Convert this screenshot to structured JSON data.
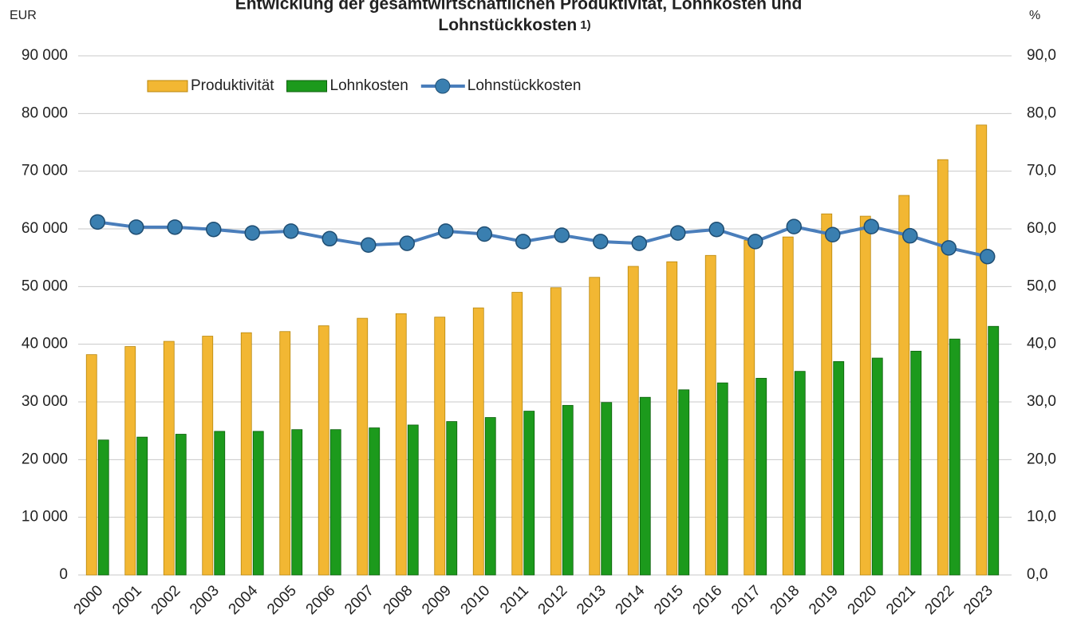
{
  "chart_data": {
    "type": "bar_line",
    "title": [
      "Entwicklung der gesamtwirtschaftlichen Produktivität, Lohnkosten und",
      "Lohnstückkosten"
    ],
    "title_note": "1)",
    "y_label": "EUR",
    "y2_label": "%",
    "categories": [
      "2000",
      "2001",
      "2002",
      "2003",
      "2004",
      "2005",
      "2006",
      "2007",
      "2008",
      "2009",
      "2010",
      "2011",
      "2012",
      "2013",
      "2014",
      "2015",
      "2016",
      "2017",
      "2018",
      "2019",
      "2020",
      "2021",
      "2022",
      "2023"
    ],
    "series": [
      {
        "name": "Produktivität",
        "color": "#f2b733",
        "type": "bar",
        "values": [
          38200,
          39600,
          40500,
          41400,
          42000,
          42200,
          43200,
          44500,
          45300,
          44700,
          46300,
          49000,
          49800,
          51600,
          53500,
          54300,
          55400,
          58000,
          58600,
          62600,
          62200,
          65800,
          72000,
          78000
        ]
      },
      {
        "name": "Lohnkosten",
        "color": "#1c9a1c",
        "type": "bar",
        "values": [
          23400,
          23900,
          24400,
          24900,
          24900,
          25200,
          25200,
          25500,
          26000,
          26600,
          27300,
          28400,
          29400,
          29900,
          30800,
          32100,
          33300,
          34100,
          35300,
          37000,
          37600,
          38800,
          40900,
          43100
        ]
      },
      {
        "name": "Lohnstückkosten",
        "color": "#4a7ebb",
        "type": "line",
        "axis": "y2",
        "values": [
          61.2,
          60.3,
          60.3,
          59.9,
          59.3,
          59.6,
          58.3,
          57.2,
          57.5,
          59.6,
          59.1,
          57.8,
          58.9,
          57.8,
          57.5,
          59.3,
          59.9,
          57.8,
          60.4,
          59.0,
          60.4,
          58.8,
          56.7,
          55.2
        ]
      }
    ],
    "ylim": [
      0,
      90000
    ],
    "yticks": [
      0,
      {
        "value": 10000,
        "label": "10 000"
      },
      {
        "value": 20000,
        "label": "20 000"
      },
      {
        "value": 30000,
        "label": "30 000"
      },
      {
        "value": 40000,
        "label": "40 000"
      },
      {
        "value": 50000,
        "label": "50 000"
      },
      {
        "value": 60000,
        "label": "60 000"
      },
      {
        "value": 70000,
        "label": "70 000"
      },
      {
        "value": 80000,
        "label": "80 000"
      },
      {
        "value": 90000,
        "label": "90 000"
      }
    ],
    "y2lim": [
      0,
      90
    ],
    "y2ticks": [
      {
        "value": 0,
        "label": "0,0"
      },
      {
        "value": 10,
        "label": "10,0"
      },
      {
        "value": 20,
        "label": "20,0"
      },
      {
        "value": 30,
        "label": "30,0"
      },
      {
        "value": 40,
        "label": "40,0"
      },
      {
        "value": 50,
        "label": "50,0"
      },
      {
        "value": 60,
        "label": "60,0"
      },
      {
        "value": 70,
        "label": "70,0"
      },
      {
        "value": 80,
        "label": "80,0"
      },
      {
        "value": 90,
        "label": "90,0"
      }
    ],
    "grid": true,
    "legend": "top-left"
  }
}
